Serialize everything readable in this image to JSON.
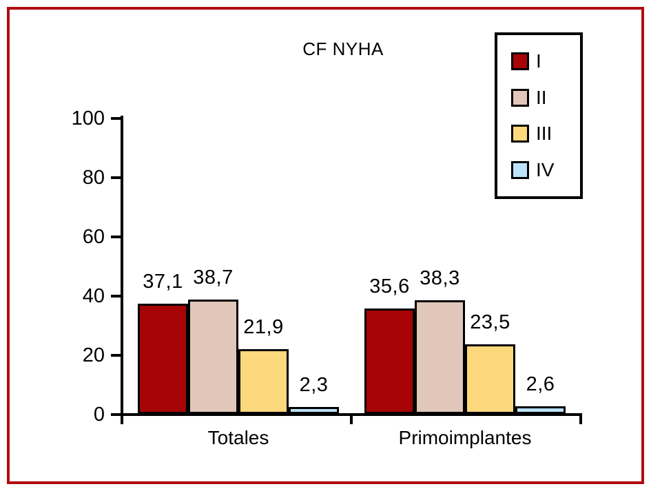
{
  "frame": {
    "color": "#b20b10"
  },
  "chart_data": {
    "type": "bar",
    "title": "CF NYHA",
    "categories": [
      "Totales",
      "Primoimplantes"
    ],
    "series": [
      {
        "name": "I",
        "color": "#a60407",
        "values": [
          37.1,
          35.6
        ],
        "labels": [
          "37,1",
          "35,6"
        ]
      },
      {
        "name": "II",
        "color": "#e1c7b9",
        "values": [
          38.7,
          38.3
        ],
        "labels": [
          "38,7",
          "38,3"
        ]
      },
      {
        "name": "III",
        "color": "#fed87c",
        "values": [
          21.9,
          23.5
        ],
        "labels": [
          "21,9",
          "23,5"
        ]
      },
      {
        "name": "IV",
        "color": "#bde3fa",
        "values": [
          2.3,
          2.6
        ],
        "labels": [
          "2,3",
          "2,6"
        ]
      }
    ],
    "xlabel": "",
    "ylabel": "",
    "ylim": [
      0,
      100
    ],
    "yticks": [
      0,
      20,
      40,
      60,
      80,
      100
    ],
    "grid": false,
    "legend_position": "top-right",
    "legend_entries": [
      "I",
      "II",
      "III",
      "IV"
    ],
    "axis_color": "#000000",
    "bar_border_color": "#000000",
    "decimal_separator": ","
  }
}
